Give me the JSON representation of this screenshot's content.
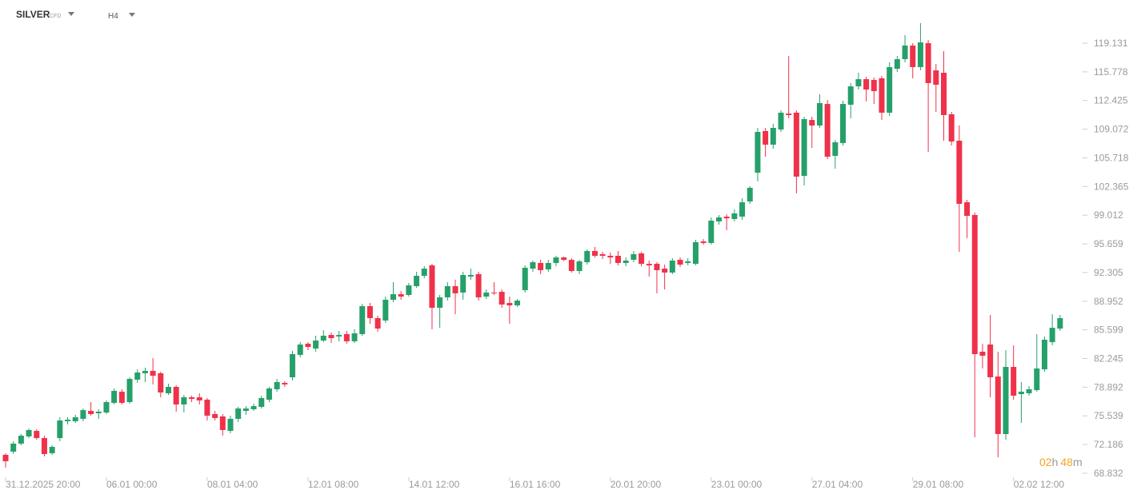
{
  "header": {
    "symbol": "SILVER",
    "kind": "CFD",
    "timeframe": "H4"
  },
  "countdown": [
    "02",
    "h",
    "48",
    "m"
  ],
  "chart_data": {
    "type": "candlestick",
    "up_color": "#26a06b",
    "down_color": "#f0314a",
    "ylim": [
      68.08,
      124.18
    ],
    "yticks": [
      119.131,
      115.778,
      112.425,
      109.072,
      105.718,
      102.365,
      99.012,
      95.659,
      92.305,
      88.952,
      85.599,
      82.245,
      78.892,
      75.539,
      72.186,
      68.832
    ],
    "categories": [
      "31.12.2025 20:00",
      null,
      null,
      null,
      null,
      null,
      null,
      null,
      null,
      null,
      null,
      null,
      null,
      "06.01 00:00",
      null,
      null,
      null,
      null,
      null,
      null,
      null,
      null,
      null,
      null,
      null,
      null,
      "08.01 04:00",
      null,
      null,
      null,
      null,
      null,
      null,
      null,
      null,
      null,
      null,
      null,
      null,
      "12.01 08:00",
      null,
      null,
      null,
      null,
      null,
      null,
      null,
      null,
      null,
      null,
      null,
      null,
      "14.01 12:00",
      null,
      null,
      null,
      null,
      null,
      null,
      null,
      null,
      null,
      null,
      null,
      null,
      "16.01 16:00",
      null,
      null,
      null,
      null,
      null,
      null,
      null,
      null,
      null,
      null,
      null,
      null,
      "20.01 20:00",
      null,
      null,
      null,
      null,
      null,
      null,
      null,
      null,
      null,
      null,
      null,
      null,
      "23.01 00:00",
      null,
      null,
      null,
      null,
      null,
      null,
      null,
      null,
      null,
      null,
      null,
      null,
      "27.01 04:00",
      null,
      null,
      null,
      null,
      null,
      null,
      null,
      null,
      null,
      null,
      null,
      null,
      "29.01 08:00",
      null,
      null,
      null,
      null,
      null,
      null,
      null,
      null,
      null,
      null,
      null,
      null,
      "02.02 12:00",
      null,
      null,
      null,
      null,
      null,
      null
    ],
    "open": [
      70.98,
      71.35,
      72.29,
      73.13,
      73.78,
      72.94,
      71.17,
      72.94,
      74.91,
      74.91,
      75.19,
      76.12,
      75.84,
      75.93,
      77.06,
      78.36,
      77.15,
      79.77,
      80.52,
      80.8,
      80.52,
      78.18,
      78.93,
      76.87,
      77.71,
      77.71,
      77.43,
      75.75,
      75.47,
      73.78,
      75.19,
      76.12,
      76.31,
      76.59,
      77.43,
      78.65,
      79.39,
      80.05,
      82.67,
      83.97,
      83.41,
      84.35,
      85.0,
      84.82,
      85.1,
      84.26,
      85.1,
      88.37,
      86.97,
      86.69,
      89.12,
      89.77,
      89.68,
      90.71,
      91.92,
      93.14,
      88.18,
      89.4,
      90.71,
      89.96,
      91.83,
      92.11,
      89.49,
      89.96,
      90.05,
      88.74,
      88.46,
      90.24,
      92.76,
      93.42,
      92.67,
      93.42,
      94.07,
      93.79,
      92.48,
      93.51,
      94.82,
      94.45,
      94.26,
      94.26,
      93.42,
      93.79,
      94.54,
      93.32,
      93.32,
      92.76,
      92.3,
      93.79,
      93.42,
      93.32,
      95.94,
      95.76,
      98.28,
      98.84,
      98.56,
      98.84,
      100.62,
      103.98,
      108.85,
      107.26,
      109.03,
      110.9,
      111.0,
      103.61,
      110.15,
      109.5,
      112.02,
      105.95,
      107.45,
      111.93,
      114.08,
      114.92,
      114.83,
      115.02,
      111.0,
      116.14,
      117.26,
      118.85,
      116.33,
      119.13,
      115.95,
      115.67,
      110.81,
      107.72,
      100.52,
      99.03,
      83.04,
      83.88,
      80.14,
      73.41,
      81.26,
      78.08,
      78.18,
      78.55,
      80.98,
      84.16,
      85.75
    ],
    "high": [
      71.17,
      72.57,
      73.41,
      74.06,
      73.97,
      73.22,
      72.1,
      75.37,
      75.37,
      75.65,
      76.4,
      77.15,
      76.31,
      77.34,
      78.74,
      78.65,
      80.05,
      80.98,
      81.17,
      82.29,
      80.7,
      79.3,
      79.11,
      77.99,
      77.9,
      78.18,
      77.62,
      76.12,
      75.75,
      75.56,
      76.59,
      76.68,
      76.96,
      77.9,
      78.93,
      79.86,
      79.58,
      83.13,
      84.16,
      84.16,
      84.91,
      85.56,
      85.28,
      85.47,
      85.47,
      85.66,
      88.65,
      88.74,
      87.25,
      89.49,
      91.17,
      90.15,
      91.08,
      92.39,
      93.04,
      93.32,
      89.68,
      91.17,
      91.46,
      92.39,
      92.76,
      92.39,
      90.33,
      91.17,
      90.33,
      89.49,
      89.21,
      93.14,
      93.7,
      93.79,
      93.79,
      94.26,
      94.17,
      93.98,
      93.79,
      95.01,
      95.29,
      94.73,
      94.63,
      94.82,
      94.07,
      94.82,
      94.73,
      93.7,
      93.51,
      93.23,
      93.98,
      94.07,
      93.98,
      96.13,
      96.22,
      98.75,
      99.03,
      99.12,
      99.68,
      100.99,
      102.4,
      109.22,
      109.22,
      109.69,
      111.28,
      117.63,
      111.28,
      110.53,
      110.53,
      113.15,
      112.49,
      107.82,
      112.4,
      114.46,
      115.67,
      115.2,
      115.11,
      115.3,
      116.89,
      117.63,
      120.07,
      119.13,
      121.47,
      119.5,
      116.7,
      118.2,
      111.09,
      109.5,
      100.81,
      99.31,
      83.97,
      87.34,
      83.04,
      83.23,
      83.79,
      79.49,
      79.02,
      85.1,
      84.82,
      87.43,
      87.34
    ],
    "low": [
      69.48,
      71.07,
      72.1,
      72.94,
      72.75,
      70.79,
      70.98,
      72.57,
      74.53,
      74.72,
      74.91,
      75.56,
      75.19,
      75.75,
      76.87,
      76.87,
      76.96,
      79.39,
      79.49,
      79.21,
      77.71,
      77.99,
      76.03,
      75.93,
      77.15,
      76.87,
      75.0,
      75.0,
      73.22,
      73.5,
      74.81,
      75.65,
      76.12,
      76.4,
      77.15,
      78.36,
      78.93,
      79.67,
      82.39,
      83.23,
      83.04,
      84.16,
      84.07,
      84.26,
      83.97,
      84.07,
      84.91,
      86.31,
      85.38,
      86.41,
      88.84,
      89.12,
      89.49,
      90.52,
      91.64,
      85.66,
      85.84,
      89.02,
      87.43,
      89.12,
      91.46,
      89.02,
      89.21,
      89.68,
      88.18,
      86.31,
      88.28,
      89.96,
      92.39,
      92.11,
      92.39,
      93.04,
      93.61,
      92.3,
      92.11,
      93.23,
      94.07,
      93.89,
      93.32,
      93.14,
      93.04,
      93.51,
      93.04,
      91.83,
      89.87,
      90.33,
      92.11,
      92.95,
      93.14,
      93.14,
      95.57,
      95.57,
      97.91,
      97.25,
      98.28,
      98.47,
      100.34,
      102.96,
      105.85,
      106.79,
      108.75,
      110.34,
      101.55,
      102.49,
      106.88,
      109.22,
      105.57,
      104.45,
      107.16,
      110.34,
      113.71,
      112.31,
      112.02,
      110.15,
      110.62,
      115.76,
      116.89,
      115.02,
      115.95,
      106.42,
      111.09,
      107.72,
      107.16,
      94.73,
      96.32,
      73.04,
      81.08,
      77.71,
      70.7,
      72.75,
      77.43,
      74.72,
      77.9,
      78.36,
      80.7,
      83.79,
      85.47
    ],
    "close": [
      70.23,
      72.29,
      73.22,
      73.88,
      72.94,
      71.07,
      71.91,
      75.0,
      75.09,
      75.37,
      76.21,
      75.75,
      76.03,
      77.15,
      78.46,
      77.06,
      79.86,
      80.61,
      80.8,
      80.23,
      78.27,
      78.93,
      76.87,
      77.71,
      77.52,
      77.34,
      75.56,
      75.28,
      73.88,
      75.19,
      76.4,
      76.4,
      76.68,
      77.62,
      78.74,
      79.49,
      79.21,
      82.76,
      83.88,
      83.6,
      84.35,
      84.91,
      84.63,
      85.0,
      84.26,
      85.19,
      88.37,
      86.97,
      85.75,
      89.12,
      89.77,
      89.49,
      90.8,
      91.92,
      92.76,
      88.18,
      89.4,
      90.71,
      89.87,
      92.02,
      92.02,
      89.4,
      89.96,
      89.87,
      88.56,
      88.46,
      89.02,
      92.86,
      93.51,
      92.58,
      93.42,
      94.07,
      93.79,
      92.48,
      93.61,
      94.82,
      94.26,
      94.26,
      94.07,
      93.42,
      93.7,
      94.45,
      93.32,
      93.14,
      92.58,
      92.3,
      93.7,
      93.23,
      93.61,
      95.85,
      95.76,
      98.37,
      98.75,
      98.65,
      99.22,
      100.52,
      102.21,
      108.75,
      107.26,
      109.22,
      111.0,
      110.72,
      103.52,
      110.25,
      109.5,
      112.12,
      105.85,
      107.54,
      112.02,
      114.08,
      114.92,
      113.71,
      113.52,
      111.0,
      116.33,
      117.26,
      118.85,
      116.33,
      119.22,
      114.46,
      114.27,
      110.72,
      107.63,
      100.34,
      98.93,
      82.76,
      82.57,
      80.05,
      73.41,
      81.26,
      77.9,
      78.36,
      78.65,
      81.08,
      84.44,
      85.84,
      86.97
    ]
  }
}
